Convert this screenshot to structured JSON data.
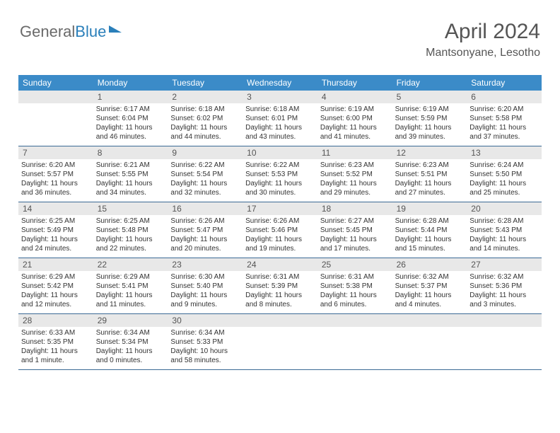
{
  "logo": {
    "part1": "General",
    "part2": "Blue"
  },
  "header": {
    "month": "April 2024",
    "location": "Mantsonyane, Lesotho"
  },
  "colors": {
    "header_bar": "#3b8bc8",
    "row_divider": "#3b6a95",
    "daynum_bg": "#e8e8e8",
    "text_primary": "#333333",
    "text_muted": "#555555",
    "logo_gray": "#6a6a6a",
    "logo_blue": "#2a7fba",
    "background": "#ffffff"
  },
  "weekdays": [
    "Sunday",
    "Monday",
    "Tuesday",
    "Wednesday",
    "Thursday",
    "Friday",
    "Saturday"
  ],
  "weeks": [
    [
      null,
      {
        "n": "1",
        "sr": "Sunrise: 6:17 AM",
        "ss": "Sunset: 6:04 PM",
        "d1": "Daylight: 11 hours",
        "d2": "and 46 minutes."
      },
      {
        "n": "2",
        "sr": "Sunrise: 6:18 AM",
        "ss": "Sunset: 6:02 PM",
        "d1": "Daylight: 11 hours",
        "d2": "and 44 minutes."
      },
      {
        "n": "3",
        "sr": "Sunrise: 6:18 AM",
        "ss": "Sunset: 6:01 PM",
        "d1": "Daylight: 11 hours",
        "d2": "and 43 minutes."
      },
      {
        "n": "4",
        "sr": "Sunrise: 6:19 AM",
        "ss": "Sunset: 6:00 PM",
        "d1": "Daylight: 11 hours",
        "d2": "and 41 minutes."
      },
      {
        "n": "5",
        "sr": "Sunrise: 6:19 AM",
        "ss": "Sunset: 5:59 PM",
        "d1": "Daylight: 11 hours",
        "d2": "and 39 minutes."
      },
      {
        "n": "6",
        "sr": "Sunrise: 6:20 AM",
        "ss": "Sunset: 5:58 PM",
        "d1": "Daylight: 11 hours",
        "d2": "and 37 minutes."
      }
    ],
    [
      {
        "n": "7",
        "sr": "Sunrise: 6:20 AM",
        "ss": "Sunset: 5:57 PM",
        "d1": "Daylight: 11 hours",
        "d2": "and 36 minutes."
      },
      {
        "n": "8",
        "sr": "Sunrise: 6:21 AM",
        "ss": "Sunset: 5:55 PM",
        "d1": "Daylight: 11 hours",
        "d2": "and 34 minutes."
      },
      {
        "n": "9",
        "sr": "Sunrise: 6:22 AM",
        "ss": "Sunset: 5:54 PM",
        "d1": "Daylight: 11 hours",
        "d2": "and 32 minutes."
      },
      {
        "n": "10",
        "sr": "Sunrise: 6:22 AM",
        "ss": "Sunset: 5:53 PM",
        "d1": "Daylight: 11 hours",
        "d2": "and 30 minutes."
      },
      {
        "n": "11",
        "sr": "Sunrise: 6:23 AM",
        "ss": "Sunset: 5:52 PM",
        "d1": "Daylight: 11 hours",
        "d2": "and 29 minutes."
      },
      {
        "n": "12",
        "sr": "Sunrise: 6:23 AM",
        "ss": "Sunset: 5:51 PM",
        "d1": "Daylight: 11 hours",
        "d2": "and 27 minutes."
      },
      {
        "n": "13",
        "sr": "Sunrise: 6:24 AM",
        "ss": "Sunset: 5:50 PM",
        "d1": "Daylight: 11 hours",
        "d2": "and 25 minutes."
      }
    ],
    [
      {
        "n": "14",
        "sr": "Sunrise: 6:25 AM",
        "ss": "Sunset: 5:49 PM",
        "d1": "Daylight: 11 hours",
        "d2": "and 24 minutes."
      },
      {
        "n": "15",
        "sr": "Sunrise: 6:25 AM",
        "ss": "Sunset: 5:48 PM",
        "d1": "Daylight: 11 hours",
        "d2": "and 22 minutes."
      },
      {
        "n": "16",
        "sr": "Sunrise: 6:26 AM",
        "ss": "Sunset: 5:47 PM",
        "d1": "Daylight: 11 hours",
        "d2": "and 20 minutes."
      },
      {
        "n": "17",
        "sr": "Sunrise: 6:26 AM",
        "ss": "Sunset: 5:46 PM",
        "d1": "Daylight: 11 hours",
        "d2": "and 19 minutes."
      },
      {
        "n": "18",
        "sr": "Sunrise: 6:27 AM",
        "ss": "Sunset: 5:45 PM",
        "d1": "Daylight: 11 hours",
        "d2": "and 17 minutes."
      },
      {
        "n": "19",
        "sr": "Sunrise: 6:28 AM",
        "ss": "Sunset: 5:44 PM",
        "d1": "Daylight: 11 hours",
        "d2": "and 15 minutes."
      },
      {
        "n": "20",
        "sr": "Sunrise: 6:28 AM",
        "ss": "Sunset: 5:43 PM",
        "d1": "Daylight: 11 hours",
        "d2": "and 14 minutes."
      }
    ],
    [
      {
        "n": "21",
        "sr": "Sunrise: 6:29 AM",
        "ss": "Sunset: 5:42 PM",
        "d1": "Daylight: 11 hours",
        "d2": "and 12 minutes."
      },
      {
        "n": "22",
        "sr": "Sunrise: 6:29 AM",
        "ss": "Sunset: 5:41 PM",
        "d1": "Daylight: 11 hours",
        "d2": "and 11 minutes."
      },
      {
        "n": "23",
        "sr": "Sunrise: 6:30 AM",
        "ss": "Sunset: 5:40 PM",
        "d1": "Daylight: 11 hours",
        "d2": "and 9 minutes."
      },
      {
        "n": "24",
        "sr": "Sunrise: 6:31 AM",
        "ss": "Sunset: 5:39 PM",
        "d1": "Daylight: 11 hours",
        "d2": "and 8 minutes."
      },
      {
        "n": "25",
        "sr": "Sunrise: 6:31 AM",
        "ss": "Sunset: 5:38 PM",
        "d1": "Daylight: 11 hours",
        "d2": "and 6 minutes."
      },
      {
        "n": "26",
        "sr": "Sunrise: 6:32 AM",
        "ss": "Sunset: 5:37 PM",
        "d1": "Daylight: 11 hours",
        "d2": "and 4 minutes."
      },
      {
        "n": "27",
        "sr": "Sunrise: 6:32 AM",
        "ss": "Sunset: 5:36 PM",
        "d1": "Daylight: 11 hours",
        "d2": "and 3 minutes."
      }
    ],
    [
      {
        "n": "28",
        "sr": "Sunrise: 6:33 AM",
        "ss": "Sunset: 5:35 PM",
        "d1": "Daylight: 11 hours",
        "d2": "and 1 minute."
      },
      {
        "n": "29",
        "sr": "Sunrise: 6:34 AM",
        "ss": "Sunset: 5:34 PM",
        "d1": "Daylight: 11 hours",
        "d2": "and 0 minutes."
      },
      {
        "n": "30",
        "sr": "Sunrise: 6:34 AM",
        "ss": "Sunset: 5:33 PM",
        "d1": "Daylight: 10 hours",
        "d2": "and 58 minutes."
      },
      null,
      null,
      null,
      null
    ]
  ]
}
